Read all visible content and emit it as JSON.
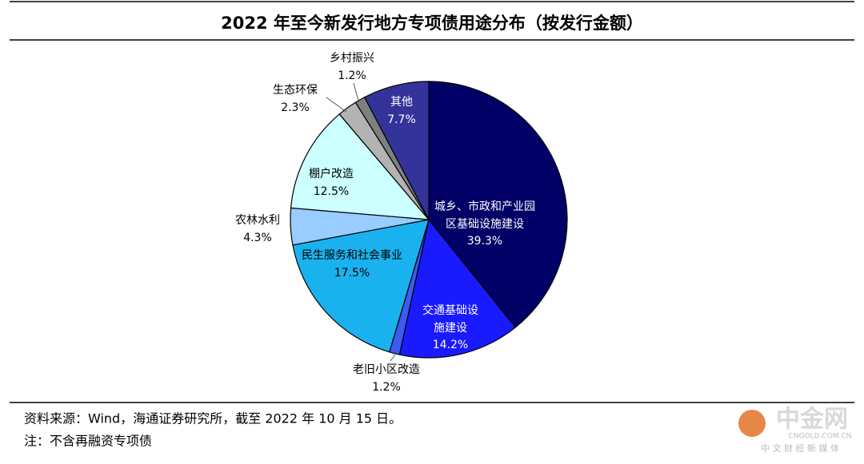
{
  "chart_data": {
    "type": "pie",
    "title": "2022 年至今新发行地方专项债用途分布（按发行金额）",
    "categories": [
      "城乡、市政和产业园区基础设施建设",
      "交通基础设施建设",
      "老旧小区改造",
      "民生服务和社会事业",
      "农林水利",
      "棚户改造",
      "生态环保",
      "乡村振兴",
      "其他"
    ],
    "values": [
      39.3,
      14.2,
      1.2,
      17.5,
      4.3,
      12.5,
      2.3,
      1.2,
      7.7
    ],
    "value_labels": [
      "39.3%",
      "14.2%",
      "1.2%",
      "17.5%",
      "4.3%",
      "12.5%",
      "2.3%",
      "1.2%",
      "7.7%"
    ],
    "colors": [
      "#000066",
      "#1a1aff",
      "#3a5cf0",
      "#1ab2ee",
      "#99ccff",
      "#ccffff",
      "#b3b3b3",
      "#7f7f7f",
      "#333399"
    ]
  },
  "footer": {
    "source": "资料来源：Wind，海通证券研究所，截至 2022 年 10 月 15 日。",
    "note": "注：不含再融资专项债"
  },
  "watermark": {
    "brand": "中金网",
    "url": "CNGOLD.COM.CN",
    "slogan": "中 文 财 经 新 媒 体"
  }
}
